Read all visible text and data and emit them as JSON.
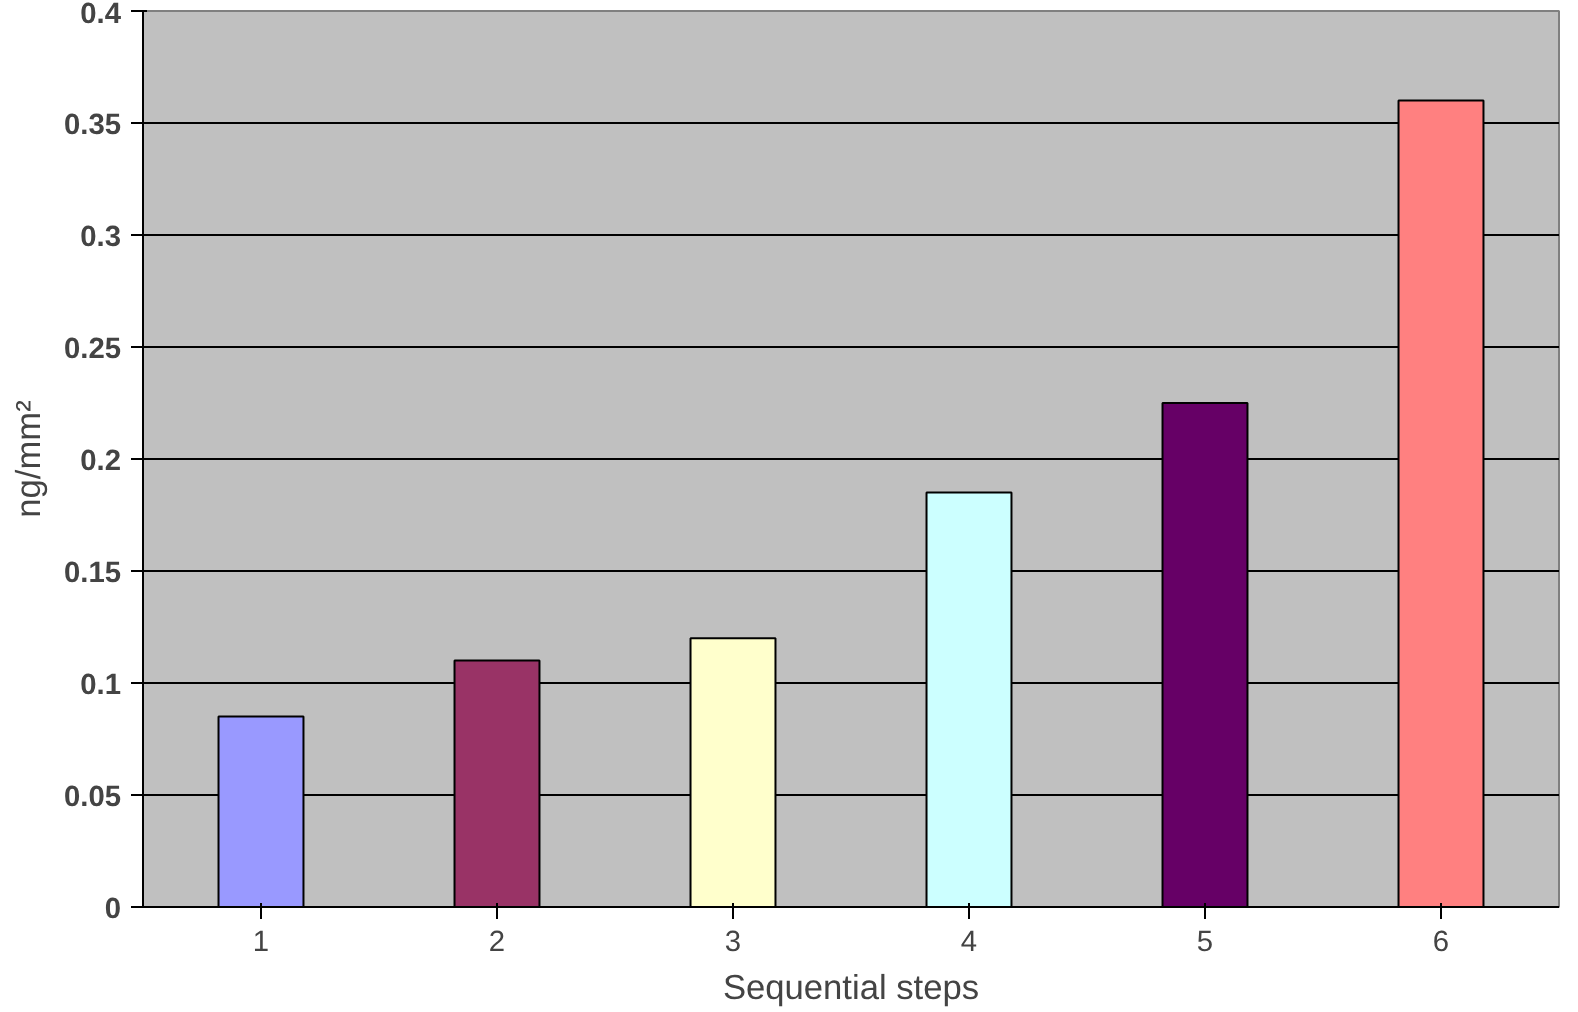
{
  "chart_data": {
    "type": "bar",
    "xlabel": "Sequential steps",
    "ylabel": "ng/mm²",
    "categories": [
      "1",
      "2",
      "3",
      "4",
      "5",
      "6"
    ],
    "values": [
      0.085,
      0.11,
      0.12,
      0.185,
      0.225,
      0.36
    ],
    "colors": [
      "#9999ff",
      "#993366",
      "#ffffcc",
      "#ccffff",
      "#660066",
      "#ff8080"
    ],
    "ylim": [
      0,
      0.4
    ],
    "yticks": [
      0,
      0.05,
      0.1,
      0.15,
      0.2,
      0.25,
      0.3,
      0.35,
      0.4
    ],
    "grid": "y"
  }
}
